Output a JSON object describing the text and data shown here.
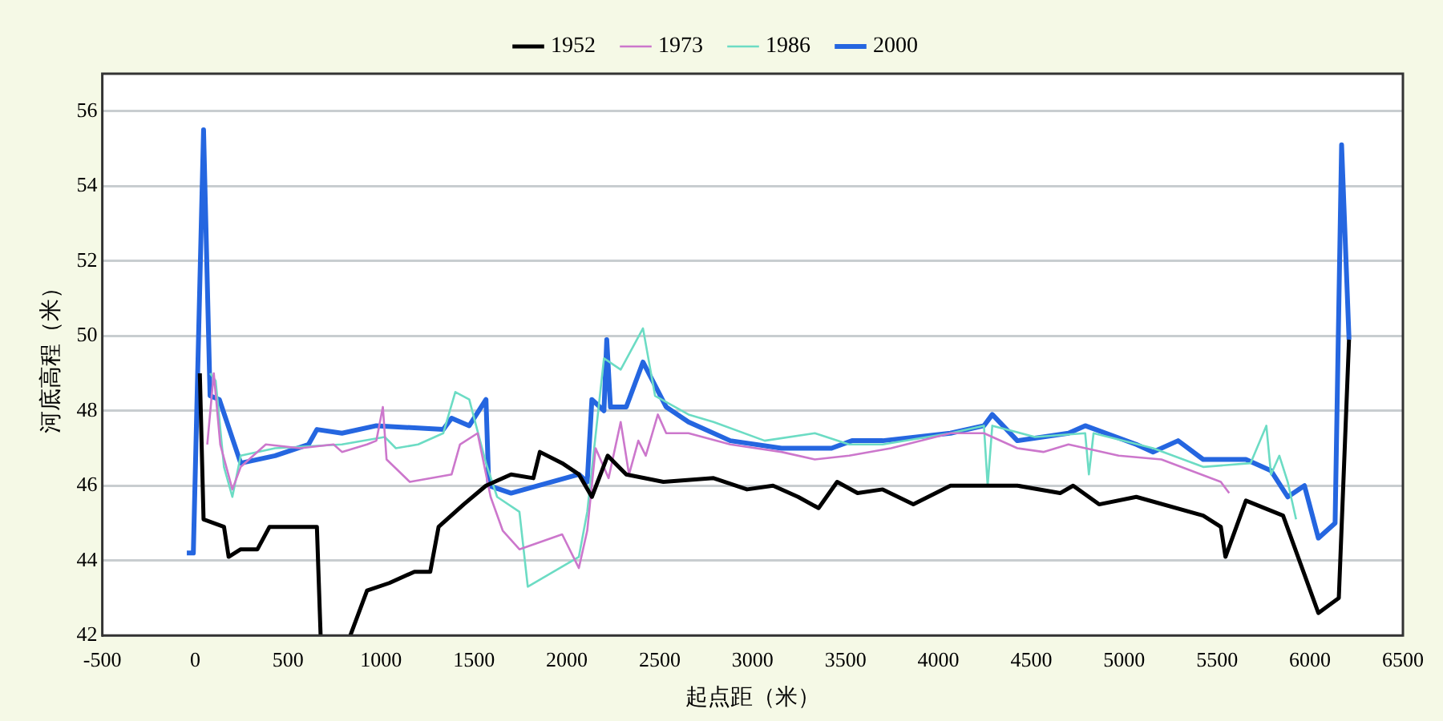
{
  "chart_data": {
    "type": "line",
    "xlabel": "起点距（米）",
    "ylabel": "河底高程（米）",
    "xlim": [
      -500,
      6500
    ],
    "xticks": [
      -500,
      0,
      500,
      1000,
      1500,
      2000,
      2500,
      3000,
      3500,
      4000,
      4500,
      5000,
      5500,
      6000,
      6500
    ],
    "ylim": [
      42,
      57
    ],
    "yticks": [
      42,
      44,
      46,
      48,
      50,
      52,
      54,
      56
    ],
    "grid": "y",
    "legend": "top",
    "marker": "none",
    "line_style": "solid",
    "series": [
      {
        "name": "1952",
        "color": "#000000",
        "x": [
          25,
          45,
          155,
          180,
          245,
          335,
          400,
          655,
          675,
          750,
          835,
          925,
          1045,
          1180,
          1265,
          1310,
          1445,
          1565,
          1700,
          1820,
          1855,
          1975,
          2065,
          2135,
          2220,
          2320,
          2520,
          2790,
          2970,
          3110,
          3245,
          3355,
          3455,
          3565,
          3700,
          3865,
          4065,
          4425,
          4655,
          4725,
          4865,
          5065,
          5425,
          5520,
          5545,
          5655,
          5855,
          6045,
          6155,
          6210
        ],
        "values": [
          49.0,
          45.1,
          44.9,
          44.1,
          44.3,
          44.3,
          44.9,
          44.9,
          42.0,
          null,
          42.0,
          43.2,
          43.4,
          43.7,
          43.7,
          44.9,
          45.5,
          46.0,
          46.3,
          46.2,
          46.9,
          46.6,
          46.3,
          45.7,
          46.8,
          46.3,
          46.1,
          46.2,
          45.9,
          46.0,
          45.7,
          45.4,
          46.1,
          45.8,
          45.9,
          45.5,
          46.0,
          46.0,
          45.8,
          46.0,
          45.5,
          45.7,
          45.2,
          44.9,
          44.1,
          45.6,
          45.2,
          42.6,
          43.0,
          49.9
        ]
      },
      {
        "name": "1973",
        "color": "#cc77cc",
        "x": [
          65,
          100,
          135,
          200,
          245,
          380,
          565,
          745,
          790,
          925,
          975,
          1010,
          1030,
          1155,
          1380,
          1425,
          1520,
          1590,
          1655,
          1745,
          1975,
          2065,
          2110,
          2155,
          2225,
          2290,
          2335,
          2385,
          2425,
          2490,
          2535,
          2655,
          2880,
          3155,
          3335,
          3520,
          3745,
          4065,
          4245,
          4425,
          4565,
          4700,
          4970,
          5200,
          5520,
          5565
        ],
        "values": [
          47.1,
          49.0,
          47.1,
          45.9,
          46.5,
          47.1,
          47.0,
          47.1,
          46.9,
          47.1,
          47.2,
          48.1,
          46.7,
          46.1,
          46.3,
          47.1,
          47.4,
          45.7,
          44.8,
          44.3,
          44.7,
          43.8,
          44.8,
          47.0,
          46.2,
          47.7,
          46.3,
          47.2,
          46.8,
          47.9,
          47.4,
          47.4,
          47.1,
          46.9,
          46.7,
          46.8,
          47.0,
          47.4,
          47.4,
          47.0,
          46.9,
          47.1,
          46.8,
          46.7,
          46.1,
          45.8
        ]
      },
      {
        "name": "1986",
        "color": "#6cdcc4",
        "x": [
          80,
          110,
          155,
          200,
          245,
          430,
          790,
          1020,
          1080,
          1200,
          1335,
          1400,
          1475,
          1565,
          1625,
          1745,
          1790,
          2065,
          2110,
          2200,
          2290,
          2410,
          2475,
          2655,
          2790,
          3065,
          3335,
          3520,
          3700,
          4065,
          4245,
          4265,
          4290,
          4520,
          4790,
          4810,
          4835,
          5155,
          5425,
          5680,
          5765,
          5790,
          5835,
          5880,
          5925
        ],
        "values": [
          49.0,
          48.8,
          46.5,
          45.7,
          46.8,
          47.0,
          47.1,
          47.3,
          47.0,
          47.1,
          47.4,
          48.5,
          48.3,
          46.6,
          45.7,
          45.3,
          43.3,
          44.1,
          45.3,
          49.4,
          49.1,
          50.2,
          48.4,
          47.9,
          47.7,
          47.2,
          47.4,
          47.1,
          47.1,
          47.4,
          47.6,
          46.0,
          47.6,
          47.3,
          47.4,
          46.3,
          47.4,
          47.0,
          46.5,
          46.6,
          47.6,
          46.3,
          46.8,
          46.1,
          45.1
        ]
      },
      {
        "name": "2000",
        "color": "#2566e0",
        "x": [
          -45,
          -10,
          45,
          80,
          130,
          245,
          430,
          610,
          655,
          790,
          975,
          1335,
          1380,
          1475,
          1565,
          1580,
          1700,
          2065,
          2110,
          2135,
          2200,
          2215,
          2235,
          2320,
          2410,
          2535,
          2655,
          2880,
          3155,
          3425,
          3535,
          3700,
          4065,
          4245,
          4290,
          4425,
          4700,
          4790,
          5065,
          5155,
          5290,
          5425,
          5655,
          5790,
          5880,
          5970,
          6045,
          6135,
          6170,
          6210
        ],
        "values": [
          44.2,
          44.2,
          55.5,
          48.4,
          48.3,
          46.6,
          46.8,
          47.1,
          47.5,
          47.4,
          47.6,
          47.5,
          47.8,
          47.6,
          48.3,
          46.0,
          45.8,
          46.3,
          46.1,
          48.3,
          48.0,
          49.9,
          48.1,
          48.1,
          49.3,
          48.1,
          47.7,
          47.2,
          47.0,
          47.0,
          47.2,
          47.2,
          47.4,
          47.6,
          47.9,
          47.2,
          47.4,
          47.6,
          47.1,
          46.9,
          47.2,
          46.7,
          46.7,
          46.4,
          45.7,
          46.0,
          44.6,
          45.0,
          55.1,
          49.9
        ]
      }
    ]
  }
}
